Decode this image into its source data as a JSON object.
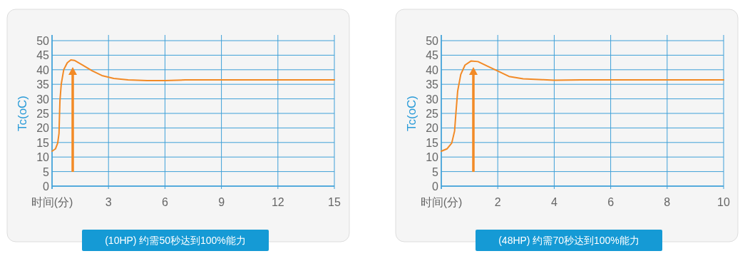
{
  "chart_data": [
    {
      "type": "line",
      "ylabel": "Tc(oC)",
      "grid": true,
      "xlim": [
        0,
        15
      ],
      "xticks": [
        {
          "value": 0,
          "label": "时间(分)"
        },
        3,
        6,
        9,
        12,
        15
      ],
      "ylim": [
        0,
        50
      ],
      "yticks": [
        0,
        5,
        10,
        15,
        20,
        25,
        30,
        35,
        40,
        45,
        50
      ],
      "x": [
        0,
        0.18,
        0.3,
        0.37,
        0.39,
        0.42,
        0.49,
        0.62,
        0.81,
        1.0,
        1.19,
        1.63,
        2.14,
        2.65,
        3.28,
        4.04,
        5.05,
        6.01,
        7.08,
        9,
        15
      ],
      "series": [
        {
          "color": "#f28a26",
          "values": [
            12,
            12.8,
            14.8,
            18.1,
            23,
            29.4,
            35.1,
            40,
            42.4,
            43.4,
            43.2,
            41.6,
            39.6,
            38,
            37,
            36.5,
            36.3,
            36.3,
            36.5,
            36.5,
            36.5
          ]
        }
      ],
      "annotations": [
        "(10HP) 约需50秒达到100%能力"
      ]
    },
    {
      "type": "line",
      "ylabel": "Tc(oC)",
      "grid": true,
      "xlim": [
        0,
        10
      ],
      "xticks": [
        {
          "value": 0,
          "label": "时间(分)"
        },
        2,
        4,
        6,
        8,
        10
      ],
      "ylim": [
        0,
        50
      ],
      "yticks": [
        0,
        5,
        10,
        15,
        20,
        25,
        30,
        35,
        40,
        45,
        50
      ],
      "x": [
        0,
        0.2,
        0.37,
        0.47,
        0.52,
        0.58,
        0.69,
        0.84,
        1.05,
        1.3,
        1.64,
        1.99,
        2.4,
        2.9,
        3.58,
        4,
        4.93,
        10
      ],
      "series": [
        {
          "color": "#f28a26",
          "values": [
            12,
            12.8,
            14.8,
            18.9,
            25.4,
            32.7,
            38.4,
            41.6,
            43,
            42.8,
            41.2,
            39.6,
            37.7,
            36.9,
            36.6,
            36.4,
            36.5,
            36.5
          ]
        }
      ],
      "annotations": [
        "(48HP) 约需70秒达到100%能力"
      ]
    }
  ]
}
